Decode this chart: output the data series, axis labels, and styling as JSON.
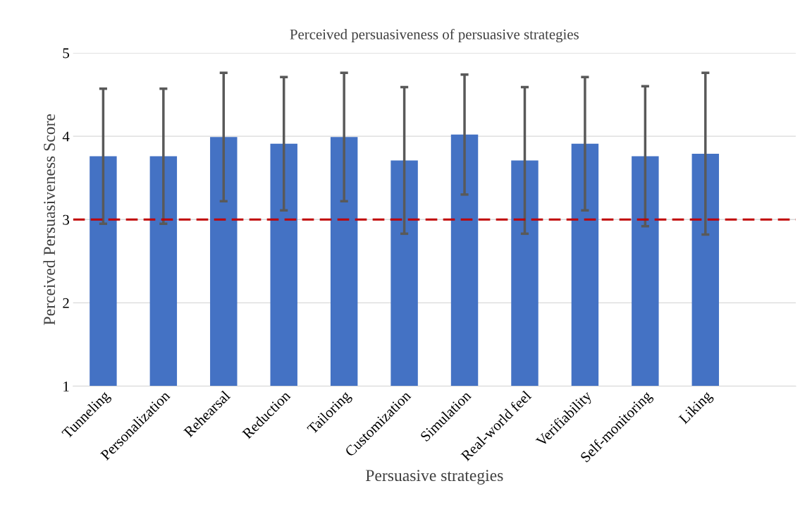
{
  "chart_data": {
    "type": "bar",
    "title": "Perceived persuasiveness of persuasive strategies",
    "xlabel": "Persuasive strategies",
    "ylabel": "Perceived Persuasiveness Score",
    "categories": [
      "Tunneling",
      "Personalization",
      "Rehearsal",
      "Reduction",
      "Tailoring",
      "Customization",
      "Simulation",
      "Real-world feel",
      "Verifiability",
      "Self-monitoring",
      "Liking"
    ],
    "series": [
      {
        "color": "#4472c4",
        "values": [
          3.76,
          3.76,
          3.99,
          3.91,
          3.99,
          3.71,
          4.02,
          3.71,
          3.91,
          3.76,
          3.79
        ],
        "errors": [
          0.81,
          0.81,
          0.77,
          0.8,
          0.77,
          0.88,
          0.72,
          0.88,
          0.8,
          0.84,
          0.97
        ]
      }
    ],
    "ylim": [
      1,
      5
    ],
    "yticks": [
      1,
      2,
      3,
      4,
      5
    ],
    "grid": "y",
    "legend": false,
    "ref_lines": [
      {
        "axis": "y",
        "value": 3,
        "color": "#c00000",
        "line_style": "dashed"
      }
    ]
  }
}
